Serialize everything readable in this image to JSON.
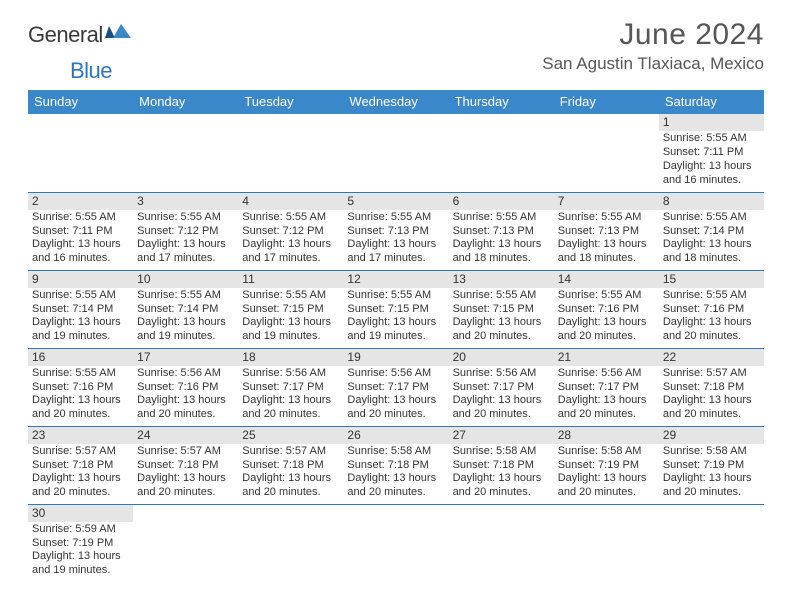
{
  "logo": {
    "part1": "General",
    "part2": "Blue"
  },
  "header": {
    "monthYear": "June 2024",
    "location": "San Agustin Tlaxiaca, Mexico"
  },
  "colors": {
    "headerBar": "#3a87c9",
    "rowDivider": "#2f77b8",
    "dayNumBg": "#e5e5e5",
    "textDark": "#343434",
    "titleGray": "#565656",
    "logoBlue": "#2f77b8",
    "background": "#ffffff"
  },
  "dayHeaders": [
    "Sunday",
    "Monday",
    "Tuesday",
    "Wednesday",
    "Thursday",
    "Friday",
    "Saturday"
  ],
  "weeks": [
    [
      null,
      null,
      null,
      null,
      null,
      null,
      {
        "n": "1",
        "sr": "5:55 AM",
        "ss": "7:11 PM",
        "dl": "13 hours and 16 minutes."
      }
    ],
    [
      {
        "n": "2",
        "sr": "5:55 AM",
        "ss": "7:11 PM",
        "dl": "13 hours and 16 minutes."
      },
      {
        "n": "3",
        "sr": "5:55 AM",
        "ss": "7:12 PM",
        "dl": "13 hours and 17 minutes."
      },
      {
        "n": "4",
        "sr": "5:55 AM",
        "ss": "7:12 PM",
        "dl": "13 hours and 17 minutes."
      },
      {
        "n": "5",
        "sr": "5:55 AM",
        "ss": "7:13 PM",
        "dl": "13 hours and 17 minutes."
      },
      {
        "n": "6",
        "sr": "5:55 AM",
        "ss": "7:13 PM",
        "dl": "13 hours and 18 minutes."
      },
      {
        "n": "7",
        "sr": "5:55 AM",
        "ss": "7:13 PM",
        "dl": "13 hours and 18 minutes."
      },
      {
        "n": "8",
        "sr": "5:55 AM",
        "ss": "7:14 PM",
        "dl": "13 hours and 18 minutes."
      }
    ],
    [
      {
        "n": "9",
        "sr": "5:55 AM",
        "ss": "7:14 PM",
        "dl": "13 hours and 19 minutes."
      },
      {
        "n": "10",
        "sr": "5:55 AM",
        "ss": "7:14 PM",
        "dl": "13 hours and 19 minutes."
      },
      {
        "n": "11",
        "sr": "5:55 AM",
        "ss": "7:15 PM",
        "dl": "13 hours and 19 minutes."
      },
      {
        "n": "12",
        "sr": "5:55 AM",
        "ss": "7:15 PM",
        "dl": "13 hours and 19 minutes."
      },
      {
        "n": "13",
        "sr": "5:55 AM",
        "ss": "7:15 PM",
        "dl": "13 hours and 20 minutes."
      },
      {
        "n": "14",
        "sr": "5:55 AM",
        "ss": "7:16 PM",
        "dl": "13 hours and 20 minutes."
      },
      {
        "n": "15",
        "sr": "5:55 AM",
        "ss": "7:16 PM",
        "dl": "13 hours and 20 minutes."
      }
    ],
    [
      {
        "n": "16",
        "sr": "5:55 AM",
        "ss": "7:16 PM",
        "dl": "13 hours and 20 minutes."
      },
      {
        "n": "17",
        "sr": "5:56 AM",
        "ss": "7:16 PM",
        "dl": "13 hours and 20 minutes."
      },
      {
        "n": "18",
        "sr": "5:56 AM",
        "ss": "7:17 PM",
        "dl": "13 hours and 20 minutes."
      },
      {
        "n": "19",
        "sr": "5:56 AM",
        "ss": "7:17 PM",
        "dl": "13 hours and 20 minutes."
      },
      {
        "n": "20",
        "sr": "5:56 AM",
        "ss": "7:17 PM",
        "dl": "13 hours and 20 minutes."
      },
      {
        "n": "21",
        "sr": "5:56 AM",
        "ss": "7:17 PM",
        "dl": "13 hours and 20 minutes."
      },
      {
        "n": "22",
        "sr": "5:57 AM",
        "ss": "7:18 PM",
        "dl": "13 hours and 20 minutes."
      }
    ],
    [
      {
        "n": "23",
        "sr": "5:57 AM",
        "ss": "7:18 PM",
        "dl": "13 hours and 20 minutes."
      },
      {
        "n": "24",
        "sr": "5:57 AM",
        "ss": "7:18 PM",
        "dl": "13 hours and 20 minutes."
      },
      {
        "n": "25",
        "sr": "5:57 AM",
        "ss": "7:18 PM",
        "dl": "13 hours and 20 minutes."
      },
      {
        "n": "26",
        "sr": "5:58 AM",
        "ss": "7:18 PM",
        "dl": "13 hours and 20 minutes."
      },
      {
        "n": "27",
        "sr": "5:58 AM",
        "ss": "7:18 PM",
        "dl": "13 hours and 20 minutes."
      },
      {
        "n": "28",
        "sr": "5:58 AM",
        "ss": "7:19 PM",
        "dl": "13 hours and 20 minutes."
      },
      {
        "n": "29",
        "sr": "5:58 AM",
        "ss": "7:19 PM",
        "dl": "13 hours and 20 minutes."
      }
    ],
    [
      {
        "n": "30",
        "sr": "5:59 AM",
        "ss": "7:19 PM",
        "dl": "13 hours and 19 minutes."
      },
      null,
      null,
      null,
      null,
      null,
      null
    ]
  ],
  "labels": {
    "sunrisePrefix": "Sunrise: ",
    "sunsetPrefix": "Sunset: ",
    "daylightPrefix": "Daylight: "
  }
}
